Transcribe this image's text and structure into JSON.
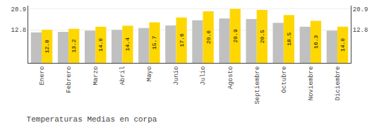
{
  "chart_data": {
    "type": "bar",
    "title": "Temperaturas Medias en corpa",
    "categories": [
      "Enero",
      "Febrero",
      "Marzo",
      "Abril",
      "Mayo",
      "Junio",
      "Julio",
      "Agosto",
      "Septiembre",
      "Octubre",
      "Noviembre",
      "Diciembre"
    ],
    "series": [
      {
        "color": "#C0C0C0",
        "values": [
          11.8,
          12.0,
          12.5,
          12.8,
          13.5,
          14.5,
          16.5,
          17.2,
          17.0,
          15.5,
          14.0,
          12.5
        ]
      },
      {
        "color": "#FFD700",
        "values": [
          12.8,
          13.2,
          14.0,
          14.4,
          15.7,
          17.6,
          20.0,
          20.9,
          20.5,
          18.5,
          16.3,
          14.0
        ],
        "data_labels": true,
        "value_labels": [
          "12.8",
          "13.2",
          "14.0",
          "14.4",
          "15.7",
          "17.6",
          "20.0",
          "20.9",
          "20.5",
          "18.5",
          "16.3",
          "14.0"
        ]
      }
    ],
    "ylim": [
      0,
      22.154
    ],
    "yticks": [
      12.8,
      20.9
    ],
    "y2lim": [
      0,
      22.154
    ],
    "y2ticks": [
      12.8,
      20.9
    ],
    "grid": true
  }
}
